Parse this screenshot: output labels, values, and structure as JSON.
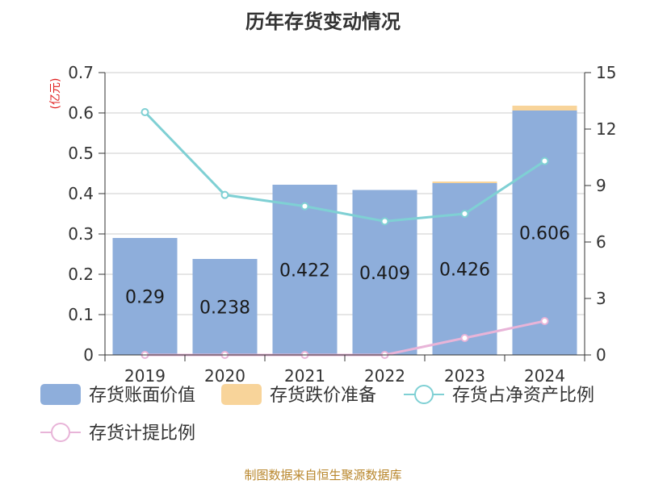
{
  "source_note": "制图数据来自恒生聚源数据库",
  "chart_data": {
    "type": "bar",
    "title": "历年存货变动情况",
    "categories": [
      "2019",
      "2020",
      "2021",
      "2022",
      "2023",
      "2024"
    ],
    "left_axis": {
      "unit_label": "(亿元)",
      "ylim": [
        0,
        0.7
      ],
      "ticks": [
        "0",
        "0.1",
        "0.2",
        "0.3",
        "0.4",
        "0.5",
        "0.6",
        "0.7"
      ]
    },
    "right_axis": {
      "ylim": [
        0,
        15
      ],
      "ticks": [
        "0",
        "3",
        "6",
        "9",
        "12",
        "15"
      ]
    },
    "grid": true,
    "legend_position": "bottom",
    "series": [
      {
        "name": "存货账面价值",
        "kind": "bar",
        "axis": "left",
        "color": "#8eaedb",
        "values": [
          0.29,
          0.238,
          0.422,
          0.409,
          0.426,
          0.606
        ],
        "labels": [
          "0.29",
          "0.238",
          "0.422",
          "0.409",
          "0.426",
          "0.606"
        ]
      },
      {
        "name": "存货跌价准备",
        "kind": "bar",
        "axis": "left",
        "color": "#f8d49a",
        "values": [
          0,
          0,
          0,
          0,
          0.004,
          0.012
        ]
      },
      {
        "name": "存货占净资产比例",
        "kind": "line",
        "axis": "right",
        "color": "#7fd0d4",
        "values": [
          12.9,
          8.5,
          7.9,
          7.1,
          7.5,
          10.3
        ]
      },
      {
        "name": "存货计提比例",
        "kind": "line",
        "axis": "right",
        "color": "#e8b4d8",
        "values": [
          0,
          0,
          0,
          0,
          0.9,
          1.8
        ]
      }
    ]
  }
}
